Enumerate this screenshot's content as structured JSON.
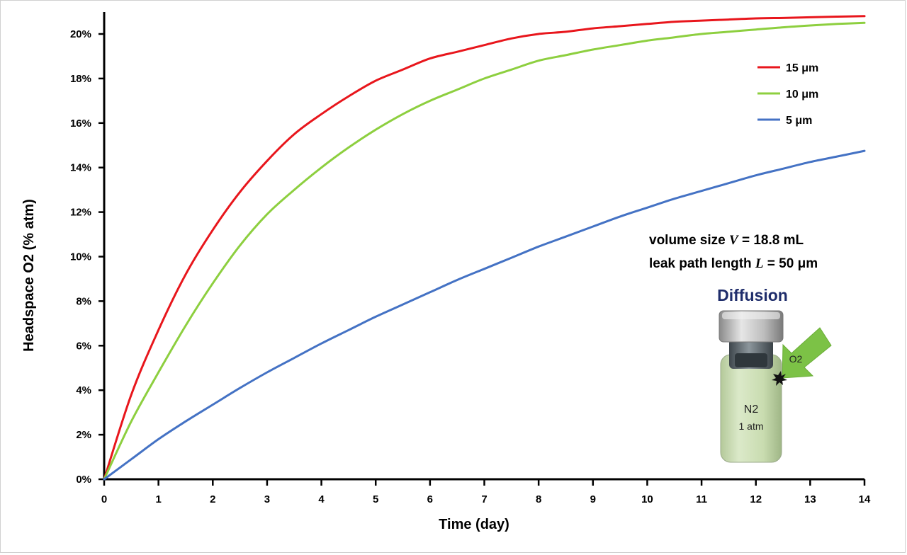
{
  "chart_data": {
    "type": "line",
    "xlabel": "Time (day)",
    "ylabel": "Headspace O2 (% atm)",
    "xlim": [
      0,
      14
    ],
    "ylim": [
      0,
      21
    ],
    "x_ticks": [
      "0",
      "1",
      "2",
      "3",
      "4",
      "5",
      "6",
      "7",
      "8",
      "9",
      "10",
      "11",
      "12",
      "13",
      "14"
    ],
    "y_ticks": [
      "0%",
      "2%",
      "4%",
      "6%",
      "8%",
      "10%",
      "12%",
      "14%",
      "16%",
      "18%",
      "20%"
    ],
    "y_tick_values": [
      0,
      2,
      4,
      6,
      8,
      10,
      12,
      14,
      16,
      18,
      20
    ],
    "grid": false,
    "legend_position": "top-right",
    "x": [
      0,
      0.5,
      1,
      1.5,
      2,
      2.5,
      3,
      3.5,
      4,
      4.5,
      5,
      5.5,
      6,
      6.5,
      7,
      7.5,
      8,
      8.5,
      9,
      9.5,
      10,
      10.5,
      11,
      11.5,
      12,
      12.5,
      13,
      13.5,
      14
    ],
    "series": [
      {
        "name": "15 μm",
        "color": "#e8161c",
        "values": [
          0,
          3.8,
          6.7,
          9.2,
          11.2,
          12.9,
          14.3,
          15.5,
          16.4,
          17.2,
          17.9,
          18.4,
          18.9,
          19.2,
          19.5,
          19.8,
          20.0,
          20.1,
          20.25,
          20.35,
          20.45,
          20.55,
          20.6,
          20.65,
          20.7,
          20.72,
          20.75,
          20.78,
          20.8
        ]
      },
      {
        "name": "10 μm",
        "color": "#8dcf3f",
        "values": [
          0,
          2.6,
          4.8,
          6.9,
          8.8,
          10.5,
          11.9,
          13.0,
          14.0,
          14.9,
          15.7,
          16.4,
          17.0,
          17.5,
          18.0,
          18.4,
          18.8,
          19.05,
          19.3,
          19.5,
          19.7,
          19.85,
          20.0,
          20.1,
          20.2,
          20.3,
          20.38,
          20.45,
          20.5
        ]
      },
      {
        "name": "5 μm",
        "color": "#4472c4",
        "values": [
          0,
          0.9,
          1.8,
          2.6,
          3.35,
          4.1,
          4.8,
          5.45,
          6.1,
          6.7,
          7.3,
          7.85,
          8.4,
          8.95,
          9.45,
          9.95,
          10.45,
          10.9,
          11.35,
          11.8,
          12.2,
          12.6,
          12.95,
          13.3,
          13.65,
          13.95,
          14.25,
          14.5,
          14.75
        ]
      }
    ],
    "annotations": {
      "line1_prefix": "volume size ",
      "line1_var": "V",
      "line1_suffix": " = 18.8 mL",
      "line2_prefix": "leak path length ",
      "line2_var": "L",
      "line2_suffix": " = 50 μm"
    },
    "inset": {
      "title": "Diffusion",
      "gas_label": "O2",
      "content_label": "N2",
      "pressure_label": "1 atm"
    }
  }
}
